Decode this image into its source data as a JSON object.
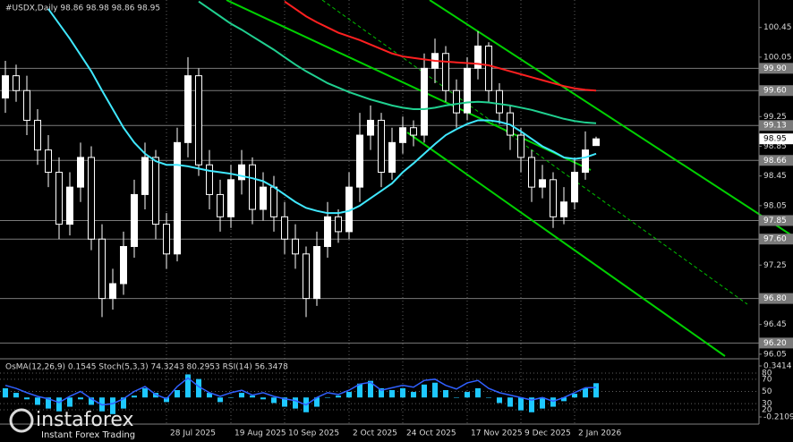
{
  "chart_data": {
    "type": "candlestick",
    "title": "#USDX,Daily  98.86 98.98 98.86 98.95",
    "categories": [
      null,
      null,
      null,
      null,
      null,
      null,
      null,
      null,
      null,
      null,
      null,
      null,
      null,
      null,
      null,
      "28 Jul 2025",
      null,
      null,
      null,
      null,
      null,
      "19 Aug 2025",
      null,
      null,
      null,
      null,
      "10 Sep 2025",
      null,
      null,
      null,
      null,
      null,
      "2 Oct 2025",
      null,
      null,
      null,
      null,
      "24 Oct 2025",
      null,
      null,
      null,
      null,
      null,
      "17 Nov 2025",
      null,
      null,
      null,
      null,
      "9 Dec 2025",
      null,
      null,
      null,
      null,
      "2 Jan 2026",
      null,
      null
    ],
    "open": [
      99.5,
      99.8,
      99.6,
      99.2,
      98.8,
      98.5,
      97.8,
      98.3,
      98.7,
      97.6,
      96.8,
      97.0,
      97.5,
      98.2,
      98.7,
      97.8,
      97.4,
      98.9,
      99.8,
      98.6,
      98.2,
      97.9,
      98.4,
      98.6,
      98.0,
      98.3,
      97.9,
      97.6,
      97.4,
      96.8,
      97.5,
      97.9,
      97.7,
      98.3,
      99.0,
      99.2,
      98.5,
      98.9,
      99.1,
      99.0,
      99.9,
      100.1,
      99.6,
      99.3,
      99.9,
      100.2,
      99.6,
      99.3,
      99.0,
      98.7,
      98.3,
      98.4,
      97.9,
      98.1,
      98.5,
      98.86
    ],
    "high": [
      100.0,
      99.95,
      99.8,
      99.35,
      99.0,
      98.7,
      98.5,
      98.9,
      98.85,
      97.8,
      97.2,
      97.7,
      98.4,
      98.9,
      98.8,
      97.95,
      99.1,
      100.05,
      99.9,
      98.8,
      98.4,
      98.6,
      98.8,
      98.7,
      98.5,
      98.45,
      98.1,
      97.8,
      97.5,
      97.7,
      98.1,
      98.0,
      98.5,
      99.3,
      99.4,
      99.3,
      99.1,
      99.25,
      99.2,
      100.1,
      100.3,
      100.2,
      99.75,
      100.05,
      100.4,
      100.25,
      99.7,
      99.4,
      99.1,
      98.8,
      98.6,
      98.5,
      98.3,
      98.7,
      99.05,
      98.98
    ],
    "low": [
      99.3,
      99.45,
      99.0,
      98.6,
      98.3,
      97.6,
      97.65,
      98.1,
      97.45,
      96.55,
      96.65,
      96.85,
      97.35,
      98.0,
      97.6,
      97.2,
      97.3,
      98.7,
      98.45,
      98.0,
      97.7,
      97.75,
      98.2,
      97.8,
      97.85,
      97.7,
      97.4,
      97.2,
      96.55,
      96.7,
      97.35,
      97.55,
      97.6,
      98.1,
      98.8,
      98.3,
      98.4,
      98.75,
      98.85,
      98.9,
      99.7,
      99.45,
      99.1,
      99.2,
      99.75,
      99.45,
      99.15,
      98.8,
      98.5,
      98.1,
      98.15,
      97.75,
      97.8,
      98.0,
      98.4,
      98.86
    ],
    "close": [
      99.8,
      99.6,
      99.2,
      98.8,
      98.5,
      97.8,
      98.3,
      98.7,
      97.6,
      96.8,
      97.0,
      97.5,
      98.2,
      98.7,
      97.8,
      97.4,
      98.9,
      99.8,
      98.6,
      98.2,
      97.9,
      98.4,
      98.6,
      98.0,
      98.3,
      97.9,
      97.6,
      97.4,
      96.8,
      97.5,
      97.9,
      97.7,
      98.3,
      99.0,
      99.2,
      98.5,
      98.9,
      99.1,
      99.0,
      99.9,
      100.1,
      99.6,
      99.3,
      99.9,
      100.2,
      99.6,
      99.3,
      99.0,
      98.7,
      98.3,
      98.4,
      97.9,
      98.1,
      98.5,
      98.8,
      98.95
    ],
    "up_color": "#ffffff",
    "down_color": "#000000",
    "series": [
      {
        "color": "#ff2020",
        "values": [
          null,
          null,
          null,
          null,
          null,
          null,
          null,
          null,
          null,
          null,
          null,
          null,
          null,
          null,
          null,
          null,
          null,
          null,
          null,
          null,
          null,
          null,
          null,
          null,
          null,
          null,
          100.8,
          100.7,
          100.6,
          100.52,
          100.45,
          100.38,
          100.33,
          100.28,
          100.22,
          100.16,
          100.1,
          100.06,
          100.04,
          100.02,
          100.0,
          99.99,
          99.98,
          99.97,
          99.96,
          99.94,
          99.9,
          99.86,
          99.82,
          99.78,
          99.74,
          99.7,
          99.66,
          99.63,
          99.61,
          99.6
        ]
      },
      {
        "color": "#20d090",
        "values": [
          null,
          null,
          null,
          null,
          null,
          null,
          null,
          null,
          null,
          null,
          null,
          null,
          null,
          null,
          null,
          null,
          null,
          null,
          100.8,
          100.7,
          100.6,
          100.5,
          100.42,
          100.33,
          100.24,
          100.15,
          100.05,
          99.95,
          99.86,
          99.78,
          99.7,
          99.64,
          99.58,
          99.53,
          99.48,
          99.44,
          99.4,
          99.37,
          99.35,
          99.35,
          99.37,
          99.4,
          99.42,
          99.44,
          99.45,
          99.44,
          99.42,
          99.4,
          99.37,
          99.34,
          99.3,
          99.26,
          99.22,
          99.19,
          99.17,
          99.16
        ]
      },
      {
        "color": "#40e8ff",
        "values": [
          null,
          null,
          null,
          null,
          100.7,
          100.5,
          100.3,
          100.08,
          99.86,
          99.6,
          99.35,
          99.1,
          98.9,
          98.75,
          98.65,
          98.6,
          98.6,
          98.58,
          98.55,
          98.52,
          98.5,
          98.48,
          98.45,
          98.42,
          98.38,
          98.3,
          98.2,
          98.1,
          98.02,
          97.98,
          97.95,
          97.95,
          97.98,
          98.05,
          98.15,
          98.25,
          98.35,
          98.5,
          98.62,
          98.75,
          98.88,
          99.0,
          99.08,
          99.15,
          99.2,
          99.2,
          99.18,
          99.14,
          99.05,
          98.95,
          98.85,
          98.78,
          98.7,
          98.68,
          98.7,
          98.75
        ]
      }
    ],
    "ylim": [
      96.0,
      100.82
    ],
    "yticks": [
      100.45,
      100.05,
      99.25,
      98.85,
      98.45,
      98.05,
      97.25,
      96.45,
      96.05
    ],
    "levels": [
      {
        "value": 99.9,
        "label": "99.90"
      },
      {
        "value": 99.6,
        "label": "99.60"
      },
      {
        "value": 99.13,
        "label": "99.13"
      },
      {
        "value": 98.66,
        "label": "98.66"
      },
      {
        "value": 97.85,
        "label": "97.85"
      },
      {
        "value": 97.6,
        "label": "97.60"
      },
      {
        "value": 96.8,
        "label": "96.80"
      },
      {
        "value": 96.2,
        "label": "96.20"
      }
    ],
    "current": {
      "value": 98.95,
      "label": "98.95"
    },
    "oscillator": {
      "label": "OsMA(12,26,9) 0.1545  Stoch(5,3,3) 74.3243 80.2953  RSI(14) 56.3478",
      "osma": [
        0.1,
        0.05,
        -0.02,
        -0.08,
        -0.12,
        -0.15,
        -0.1,
        -0.02,
        -0.08,
        -0.15,
        -0.18,
        -0.12,
        0.02,
        0.1,
        0.05,
        -0.05,
        0.08,
        0.25,
        0.2,
        0.05,
        -0.05,
        0,
        0.05,
        0.02,
        -0.02,
        -0.06,
        -0.1,
        -0.12,
        -0.16,
        -0.1,
        0,
        0.02,
        0.06,
        0.15,
        0.18,
        0.1,
        0.08,
        0.1,
        0.06,
        0.14,
        0.16,
        0.08,
        0,
        0.06,
        0.1,
        0,
        -0.06,
        -0.1,
        -0.14,
        -0.16,
        -0.12,
        -0.1,
        -0.04,
        0.04,
        0.1,
        0.1545
      ],
      "osma_color": "#1ec8ff",
      "osma_lim": [
        -0.2109,
        0.3414
      ],
      "osma_ticks": [
        0.3414,
        -0.2109
      ],
      "rsi": [
        60,
        55,
        48,
        42,
        38,
        32,
        42,
        50,
        38,
        28,
        30,
        38,
        50,
        58,
        45,
        38,
        58,
        72,
        58,
        48,
        42,
        48,
        52,
        44,
        48,
        42,
        38,
        35,
        28,
        40,
        48,
        45,
        52,
        62,
        65,
        52,
        56,
        60,
        57,
        68,
        70,
        60,
        54,
        64,
        68,
        55,
        48,
        44,
        40,
        36,
        40,
        34,
        40,
        48,
        56,
        56.3478
      ],
      "rsi_color": "#3060ff",
      "rsi_lim": [
        0,
        100
      ],
      "rsi_ticks": [
        80,
        70,
        50,
        30,
        20
      ]
    },
    "logo": {
      "name": "instaforex",
      "tagline": "Instant Forex Trading"
    }
  }
}
